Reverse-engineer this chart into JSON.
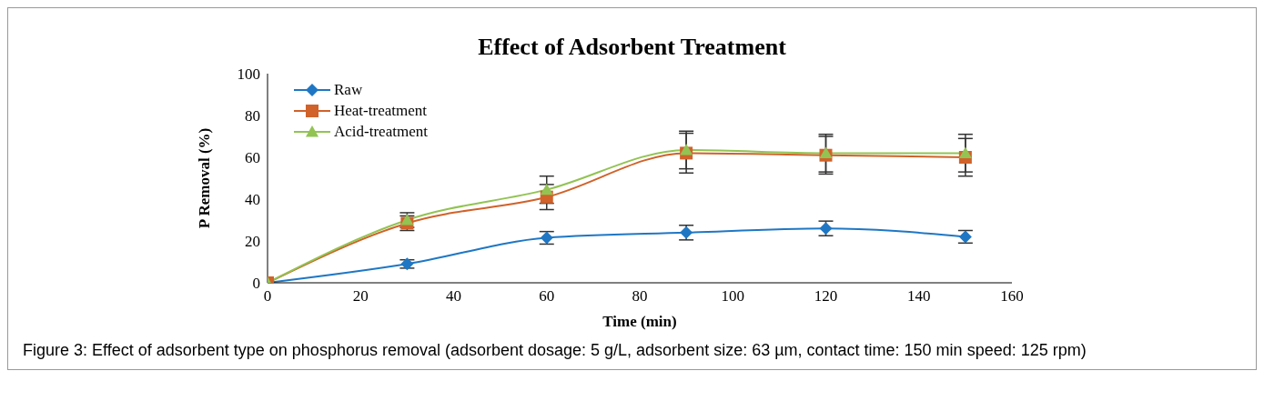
{
  "chart_data": {
    "type": "line",
    "title": "Effect of Adsorbent Treatment",
    "xlabel": "Time (min)",
    "ylabel": "P Removal (%)",
    "x": [
      0,
      30,
      60,
      90,
      120,
      150
    ],
    "series": [
      {
        "name": "Raw",
        "color": "#1f77c4",
        "marker": "diamond",
        "values": [
          0,
          9,
          21.5,
          24,
          26,
          22
        ],
        "errors": [
          0,
          2,
          3,
          3.5,
          3.5,
          3
        ]
      },
      {
        "name": "Heat-treatment",
        "color": "#d0622a",
        "marker": "square",
        "values": [
          0,
          28.5,
          41,
          62,
          61,
          60
        ],
        "errors": [
          0,
          3.5,
          6,
          9.5,
          9,
          9
        ]
      },
      {
        "name": "Acid-treatment",
        "color": "#92c353",
        "marker": "triangle",
        "values": [
          0,
          30,
          44.5,
          63.5,
          62,
          62
        ],
        "errors": [
          0,
          3.5,
          6.5,
          9,
          9,
          9
        ]
      }
    ],
    "xlim": [
      0,
      160
    ],
    "xticks": [
      0,
      20,
      40,
      60,
      80,
      100,
      120,
      140,
      160
    ],
    "ylim": [
      0,
      100
    ],
    "yticks": [
      0,
      20,
      40,
      60,
      80,
      100
    ],
    "grid": false,
    "legend": "top left",
    "annotations": [
      "Figure 3: Effect of adsorbent type on phosphorus removal (adsorbent dosage: 5 g/L, adsorbent size: 63 µm, contact time: 150 min speed: 125 rpm)"
    ]
  }
}
